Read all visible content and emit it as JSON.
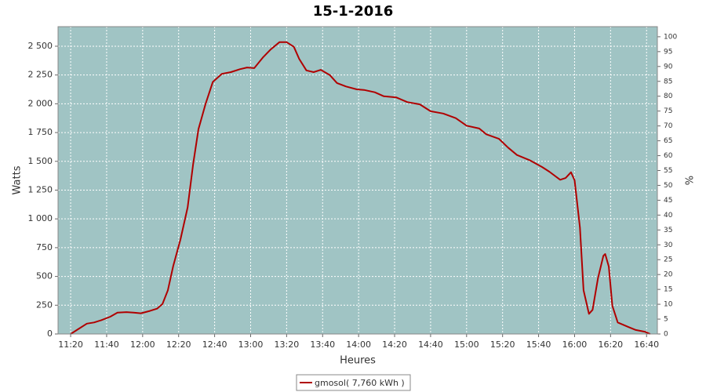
{
  "chart_data": {
    "type": "line",
    "title": "15-1-2016",
    "x_label": "Heures",
    "y_label": "Watts",
    "y2_label": "%",
    "x": [
      "11:20",
      "11:24",
      "11:29",
      "11:33",
      "11:37",
      "11:42",
      "11:46",
      "11:51",
      "11:55",
      "11:59",
      "12:04",
      "12:08",
      "12:11",
      "12:14",
      "12:17",
      "12:21",
      "12:25",
      "12:28",
      "12:31",
      "12:35",
      "12:39",
      "12:44",
      "12:49",
      "12:54",
      "12:58",
      "13:02",
      "13:07",
      "13:11",
      "13:16",
      "13:20",
      "13:24",
      "13:27",
      "13:31",
      "13:35",
      "13:39",
      "13:44",
      "13:48",
      "13:53",
      "13:59",
      "14:03",
      "14:09",
      "14:14",
      "14:21",
      "14:27",
      "14:34",
      "14:40",
      "14:47",
      "14:54",
      "15:00",
      "15:07",
      "15:11",
      "15:18",
      "15:23",
      "15:28",
      "15:35",
      "15:42",
      "15:46",
      "15:52",
      "15:55",
      "15:58",
      "16:00",
      "16:03",
      "16:05",
      "16:08",
      "16:10",
      "16:13",
      "16:16",
      "16:17",
      "16:19",
      "16:21",
      "16:24",
      "16:30",
      "16:34",
      "16:39",
      "16:42"
    ],
    "series": [
      {
        "name": "gmosol( 7,760 kWh )",
        "color": "#b00000",
        "values": [
          0,
          40,
          90,
          100,
          120,
          150,
          185,
          190,
          185,
          180,
          200,
          220,
          260,
          380,
          590,
          820,
          1100,
          1470,
          1780,
          2000,
          2190,
          2260,
          2275,
          2300,
          2315,
          2310,
          2405,
          2470,
          2535,
          2535,
          2495,
          2390,
          2290,
          2275,
          2295,
          2250,
          2180,
          2150,
          2125,
          2120,
          2100,
          2065,
          2055,
          2015,
          1995,
          1935,
          1915,
          1875,
          1810,
          1785,
          1735,
          1695,
          1620,
          1555,
          1510,
          1450,
          1410,
          1340,
          1355,
          1405,
          1335,
          925,
          380,
          175,
          210,
          485,
          680,
          695,
          585,
          245,
          100,
          60,
          35,
          20,
          0
        ]
      }
    ],
    "xlim": [
      "11:13",
      "16:46"
    ],
    "xticks": [
      "11:20",
      "11:40",
      "12:00",
      "12:20",
      "12:40",
      "13:00",
      "13:20",
      "13:40",
      "14:00",
      "14:20",
      "14:40",
      "15:00",
      "15:20",
      "15:40",
      "16:00",
      "16:20",
      "16:40"
    ],
    "ylim": [
      0,
      2670
    ],
    "yticks": [
      0,
      250,
      500,
      750,
      {
        "value": 1000,
        "label": "1 000"
      },
      {
        "value": 1250,
        "label": "1 250"
      },
      {
        "value": 1500,
        "label": "1 500"
      },
      {
        "value": 1750,
        "label": "1 750"
      },
      {
        "value": 2000,
        "label": "2 000"
      },
      {
        "value": 2250,
        "label": "2 250"
      },
      {
        "value": 2500,
        "label": "2 500"
      }
    ],
    "y2lim": [
      0,
      103.4
    ],
    "y2ticks": [
      0,
      5,
      10,
      15,
      20,
      25,
      30,
      35,
      40,
      45,
      50,
      55,
      60,
      65,
      70,
      75,
      80,
      85,
      90,
      95,
      100
    ],
    "grid": true,
    "background": "#a0c4c4",
    "legend": "bottom"
  }
}
